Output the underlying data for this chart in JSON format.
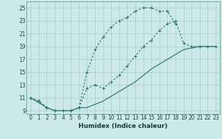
{
  "xlabel": "Humidex (Indice chaleur)",
  "bg_color": "#cce8e8",
  "line_color": "#2d7a6e",
  "grid_color": "#aacccc",
  "xlim": [
    -0.5,
    23.5
  ],
  "ylim": [
    8.5,
    26
  ],
  "yticks": [
    9,
    11,
    13,
    15,
    17,
    19,
    21,
    23,
    25
  ],
  "xticks": [
    0,
    1,
    2,
    3,
    4,
    5,
    6,
    7,
    8,
    9,
    10,
    11,
    12,
    13,
    14,
    15,
    16,
    17,
    18,
    19,
    20,
    21,
    22,
    23
  ],
  "curve1_x": [
    0,
    1,
    2,
    3,
    4,
    5,
    6,
    7,
    8,
    9,
    10,
    11,
    12,
    13,
    14,
    15,
    16,
    17,
    18
  ],
  "curve1_y": [
    11,
    10.5,
    9.5,
    9,
    9,
    9,
    9.5,
    15,
    18.5,
    20.5,
    22,
    23,
    23.5,
    24.5,
    25,
    25,
    24.5,
    24.5,
    22.5
  ],
  "curve2_x": [
    0,
    1,
    2,
    3,
    4,
    5,
    6,
    7,
    8,
    9,
    10,
    11,
    12,
    13,
    14,
    15,
    16,
    17,
    18,
    19,
    20,
    21,
    22,
    23
  ],
  "curve2_y": [
    11,
    10.5,
    9.5,
    9,
    9,
    9,
    9.5,
    12.5,
    13,
    12.5,
    13.5,
    14.5,
    16,
    17.5,
    19,
    20,
    21.5,
    22.5,
    23,
    19.5,
    19,
    19,
    19,
    19
  ],
  "curve3_x": [
    0,
    2,
    3,
    4,
    5,
    6,
    7,
    9,
    11,
    13,
    15,
    17,
    19,
    21,
    22,
    23
  ],
  "curve3_y": [
    11,
    9.5,
    9,
    9,
    9,
    9.5,
    9.5,
    10.5,
    12,
    13.5,
    15.5,
    17,
    18.5,
    19,
    19,
    19
  ]
}
